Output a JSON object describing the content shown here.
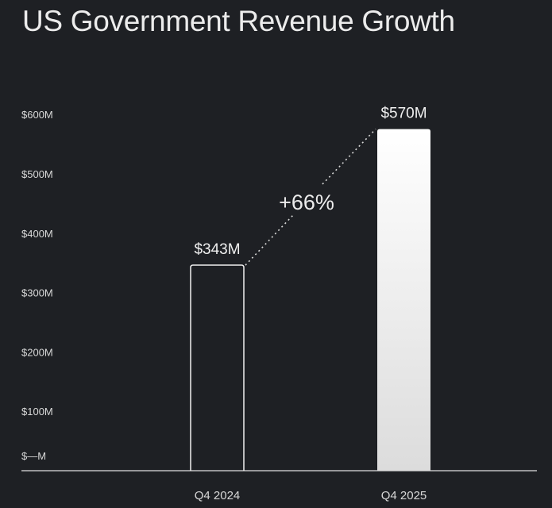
{
  "chart_data": {
    "type": "bar",
    "title": "US Government Revenue Growth",
    "categories": [
      "Q4 2024",
      "Q4 2025"
    ],
    "values": [
      343,
      570
    ],
    "data_labels": [
      "$343M",
      "$570M"
    ],
    "ytick_values": [
      0,
      100,
      200,
      300,
      400,
      500,
      600
    ],
    "ytick_labels": [
      "$—M",
      "$100M",
      "$200M",
      "$300M",
      "$400M",
      "$500M",
      "$600M"
    ],
    "ylim": [
      0,
      600
    ],
    "xlabel": "",
    "ylabel": "",
    "grid": false,
    "annotation": "+66%",
    "bar_styles": [
      "outline",
      "filled-gradient"
    ],
    "colors": {
      "background": "#1e2024",
      "foreground": "#ffffff"
    }
  }
}
